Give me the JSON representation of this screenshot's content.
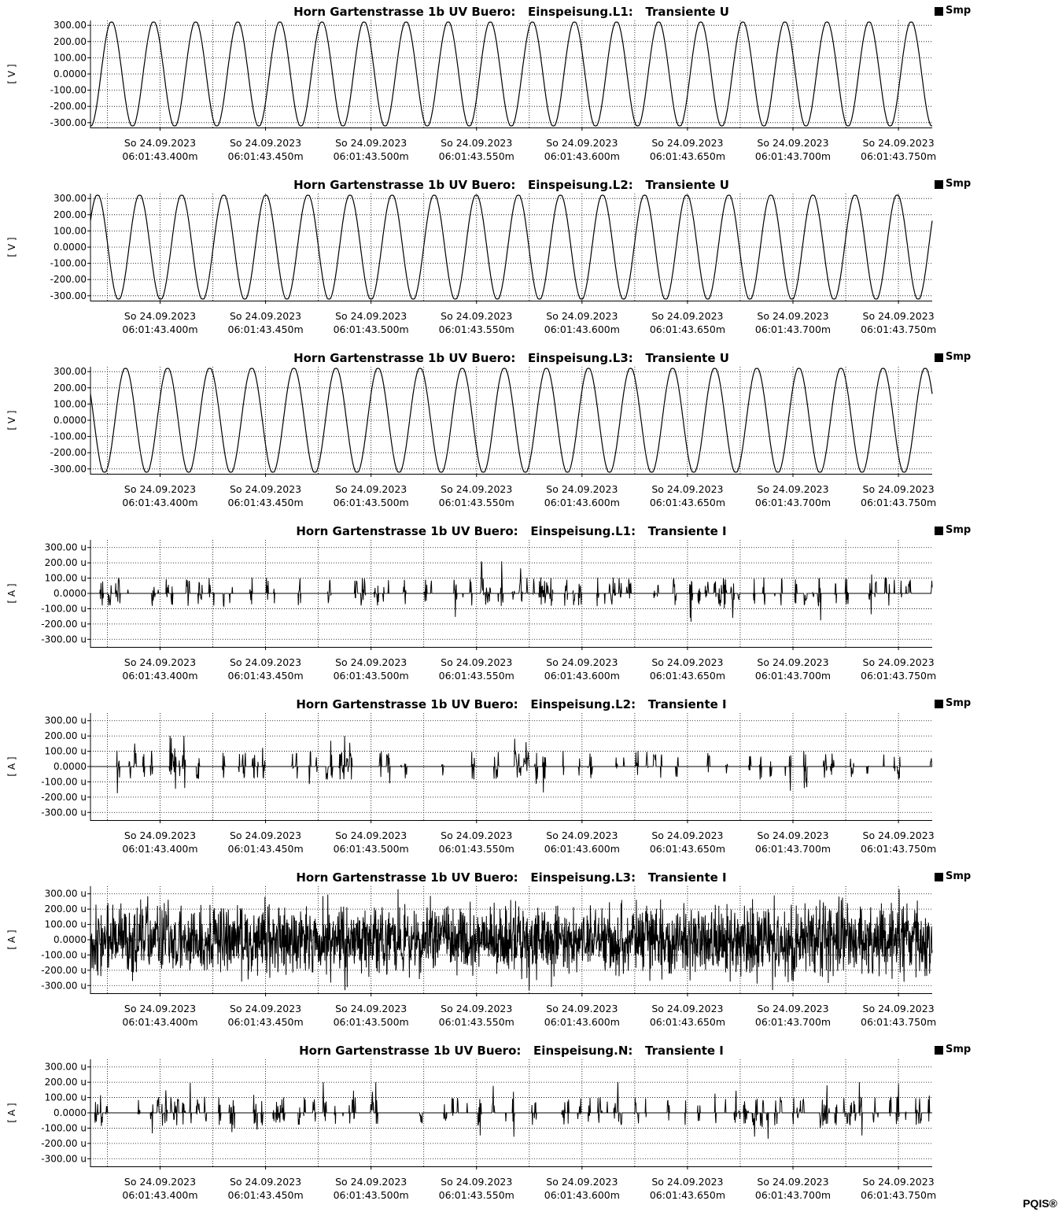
{
  "brand": "PQIS®",
  "chart_data": [
    {
      "type": "line",
      "title": "Horn Gartenstrasse 1b UV Buero:   Einspeisung.L1:   Transiente U",
      "legend": "Smp",
      "ylabel": "[ V ]",
      "kind": "voltage",
      "ylim": [
        -330,
        330
      ],
      "yticks": [
        "300.00",
        "200.00",
        "100.00",
        "0.0000",
        "-100.00",
        "-200.00",
        "-300.00"
      ],
      "ytick_values": [
        300,
        200,
        100,
        0,
        -100,
        -200,
        -300
      ],
      "x_range_ms": [
        43.367,
        43.766
      ],
      "x_ticks_ms": [
        43.4,
        43.45,
        43.5,
        43.55,
        43.6,
        43.65,
        43.7,
        43.75
      ],
      "x_tick_date": "So 24.09.2023",
      "x_tick_times": [
        "06:01:43.400m",
        "06:01:43.450m",
        "06:01:43.500m",
        "06:01:43.550m",
        "06:01:43.600m",
        "06:01:43.650m",
        "06:01:43.700m",
        "06:01:43.750m"
      ],
      "amplitude": 325,
      "cycles": 20,
      "phase_deg": 270
    },
    {
      "type": "line",
      "title": "Horn Gartenstrasse 1b UV Buero:   Einspeisung.L2:   Transiente U",
      "legend": "Smp",
      "ylabel": "[ V ]",
      "kind": "voltage",
      "ylim": [
        -330,
        330
      ],
      "yticks": [
        "300.00",
        "200.00",
        "100.00",
        "0.0000",
        "-100.00",
        "-200.00",
        "-300.00"
      ],
      "ytick_values": [
        300,
        200,
        100,
        0,
        -100,
        -200,
        -300
      ],
      "x_range_ms": [
        43.367,
        43.766
      ],
      "x_ticks_ms": [
        43.4,
        43.45,
        43.5,
        43.55,
        43.6,
        43.65,
        43.7,
        43.75
      ],
      "x_tick_date": "So 24.09.2023",
      "x_tick_times": [
        "06:01:43.400m",
        "06:01:43.450m",
        "06:01:43.500m",
        "06:01:43.550m",
        "06:01:43.600m",
        "06:01:43.650m",
        "06:01:43.700m",
        "06:01:43.750m"
      ],
      "amplitude": 325,
      "cycles": 20,
      "phase_deg": 30
    },
    {
      "type": "line",
      "title": "Horn Gartenstrasse 1b UV Buero:   Einspeisung.L3:   Transiente U",
      "legend": "Smp",
      "ylabel": "[ V ]",
      "kind": "voltage",
      "ylim": [
        -330,
        330
      ],
      "yticks": [
        "300.00",
        "200.00",
        "100.00",
        "0.0000",
        "-100.00",
        "-200.00",
        "-300.00"
      ],
      "ytick_values": [
        300,
        200,
        100,
        0,
        -100,
        -200,
        -300
      ],
      "x_range_ms": [
        43.367,
        43.766
      ],
      "x_ticks_ms": [
        43.4,
        43.45,
        43.5,
        43.55,
        43.6,
        43.65,
        43.7,
        43.75
      ],
      "x_tick_date": "So 24.09.2023",
      "x_tick_times": [
        "06:01:43.400m",
        "06:01:43.450m",
        "06:01:43.500m",
        "06:01:43.550m",
        "06:01:43.600m",
        "06:01:43.650m",
        "06:01:43.700m",
        "06:01:43.750m"
      ],
      "amplitude": 325,
      "cycles": 20,
      "phase_deg": 150
    },
    {
      "type": "line",
      "title": "Horn Gartenstrasse 1b UV Buero:   Einspeisung.L1:   Transiente I",
      "legend": "Smp",
      "ylabel": "[ A ]",
      "kind": "sparse",
      "ylim": [
        -350,
        350
      ],
      "yticks": [
        "300.00 u",
        "200.00 u",
        "100.00 u",
        "0.0000",
        "-100.00 u",
        "-200.00 u",
        "-300.00 u"
      ],
      "ytick_values": [
        300,
        200,
        100,
        0,
        -100,
        -200,
        -300
      ],
      "x_range_ms": [
        43.367,
        43.766
      ],
      "x_ticks_ms": [
        43.4,
        43.45,
        43.5,
        43.55,
        43.6,
        43.65,
        43.7,
        43.75
      ],
      "x_tick_date": "So 24.09.2023",
      "x_tick_times": [
        "06:01:43.400m",
        "06:01:43.450m",
        "06:01:43.500m",
        "06:01:43.550m",
        "06:01:43.600m",
        "06:01:43.650m",
        "06:01:43.700m",
        "06:01:43.750m"
      ],
      "peak": 210,
      "seed": 11,
      "density": 0.055
    },
    {
      "type": "line",
      "title": "Horn Gartenstrasse 1b UV Buero:   Einspeisung.L2:   Transiente I",
      "legend": "Smp",
      "ylabel": "[ A ]",
      "kind": "sparse",
      "ylim": [
        -350,
        350
      ],
      "yticks": [
        "300.00 u",
        "200.00 u",
        "100.00 u",
        "0.0000",
        "-100.00 u",
        "-200.00 u",
        "-300.00 u"
      ],
      "ytick_values": [
        300,
        200,
        100,
        0,
        -100,
        -200,
        -300
      ],
      "x_range_ms": [
        43.367,
        43.766
      ],
      "x_ticks_ms": [
        43.4,
        43.45,
        43.5,
        43.55,
        43.6,
        43.65,
        43.7,
        43.75
      ],
      "x_tick_date": "So 24.09.2023",
      "x_tick_times": [
        "06:01:43.400m",
        "06:01:43.450m",
        "06:01:43.500m",
        "06:01:43.550m",
        "06:01:43.600m",
        "06:01:43.650m",
        "06:01:43.700m",
        "06:01:43.750m"
      ],
      "peak": 200,
      "seed": 23,
      "density": 0.04
    },
    {
      "type": "line",
      "title": "Horn Gartenstrasse 1b UV Buero:   Einspeisung.L3:   Transiente I",
      "legend": "Smp",
      "ylabel": "[ A ]",
      "kind": "noise",
      "ylim": [
        -350,
        350
      ],
      "yticks": [
        "300.00 u",
        "200.00 u",
        "100.00 u",
        "0.0000",
        "-100.00 u",
        "-200.00 u",
        "-300.00 u"
      ],
      "ytick_values": [
        300,
        200,
        100,
        0,
        -100,
        -200,
        -300
      ],
      "x_range_ms": [
        43.367,
        43.766
      ],
      "x_ticks_ms": [
        43.4,
        43.45,
        43.5,
        43.55,
        43.6,
        43.65,
        43.7,
        43.75
      ],
      "x_tick_date": "So 24.09.2023",
      "x_tick_times": [
        "06:01:43.400m",
        "06:01:43.450m",
        "06:01:43.500m",
        "06:01:43.550m",
        "06:01:43.600m",
        "06:01:43.650m",
        "06:01:43.700m",
        "06:01:43.750m"
      ],
      "peak": 330,
      "seed": 37
    },
    {
      "type": "line",
      "title": "Horn Gartenstrasse 1b UV Buero:   Einspeisung.N:   Transiente I",
      "legend": "Smp",
      "ylabel": "[ A ]",
      "kind": "sparse",
      "ylim": [
        -350,
        350
      ],
      "yticks": [
        "300.00 u",
        "200.00 u",
        "100.00 u",
        "0.0000",
        "-100.00 u",
        "-200.00 u",
        "-300.00 u"
      ],
      "ytick_values": [
        300,
        200,
        100,
        0,
        -100,
        -200,
        -300
      ],
      "x_range_ms": [
        43.367,
        43.766
      ],
      "x_ticks_ms": [
        43.4,
        43.45,
        43.5,
        43.55,
        43.6,
        43.65,
        43.7,
        43.75
      ],
      "x_tick_date": "So 24.09.2023",
      "x_tick_times": [
        "06:01:43.400m",
        "06:01:43.450m",
        "06:01:43.500m",
        "06:01:43.550m",
        "06:01:43.600m",
        "06:01:43.650m",
        "06:01:43.700m",
        "06:01:43.750m"
      ],
      "peak": 200,
      "seed": 53,
      "density": 0.07
    }
  ]
}
